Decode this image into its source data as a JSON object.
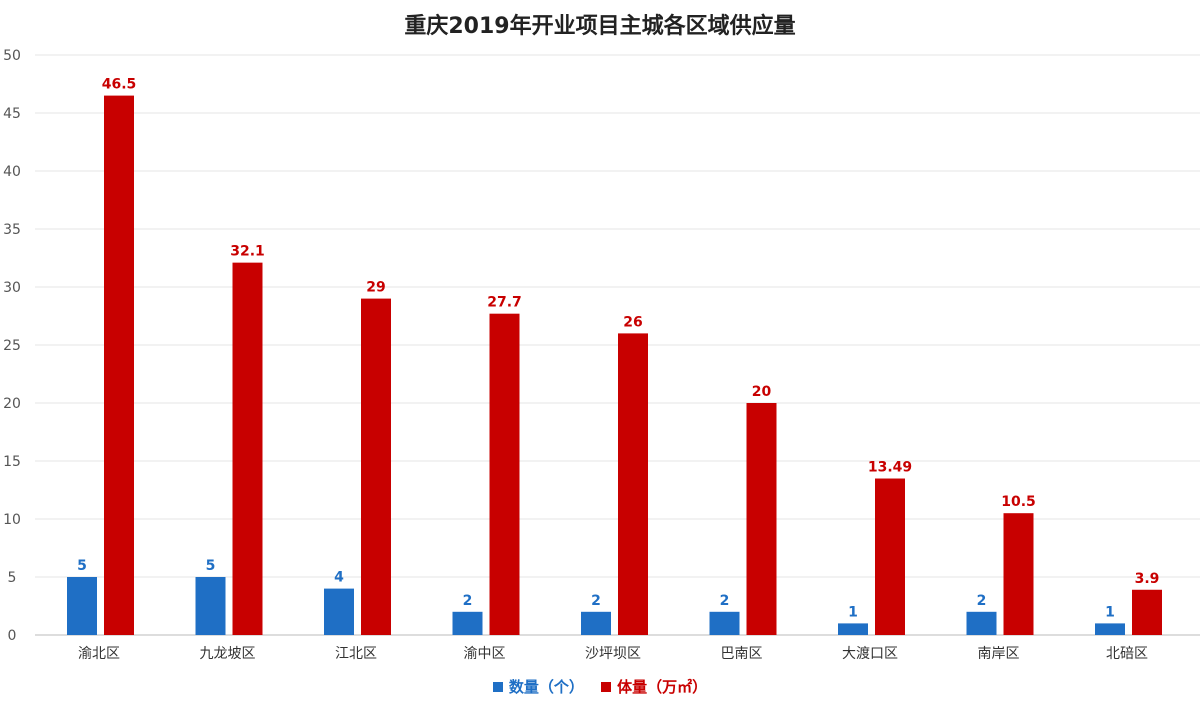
{
  "chart_data": {
    "type": "bar",
    "title": "重庆2019年开业项目主城各区域供应量",
    "categories": [
      "渝北区",
      "九龙坡区",
      "江北区",
      "渝中区",
      "沙坪坝区",
      "巴南区",
      "大渡口区",
      "南岸区",
      "北碚区"
    ],
    "series": [
      {
        "name": "数量（个）",
        "color": "#1f6fc5",
        "values": [
          5,
          5,
          4,
          2,
          2,
          2,
          1,
          2,
          1
        ],
        "labels": [
          "5",
          "5",
          "4",
          "2",
          "2",
          "2",
          "1",
          "2",
          "1"
        ]
      },
      {
        "name": "体量（万㎡）",
        "color": "#c80000",
        "values": [
          46.5,
          32.1,
          29,
          27.7,
          26,
          20,
          13.49,
          10.5,
          3.9
        ],
        "labels": [
          "46.5",
          "32.1",
          "29",
          "27.7",
          "26",
          "20",
          "13.49",
          "10.5",
          "3.9"
        ]
      }
    ],
    "ylim": [
      0,
      50
    ],
    "yticks": [
      "0",
      "5",
      "10",
      "15",
      "20",
      "25",
      "30",
      "35",
      "40",
      "45",
      "50"
    ],
    "grid": true,
    "legend": "bottom-center"
  }
}
